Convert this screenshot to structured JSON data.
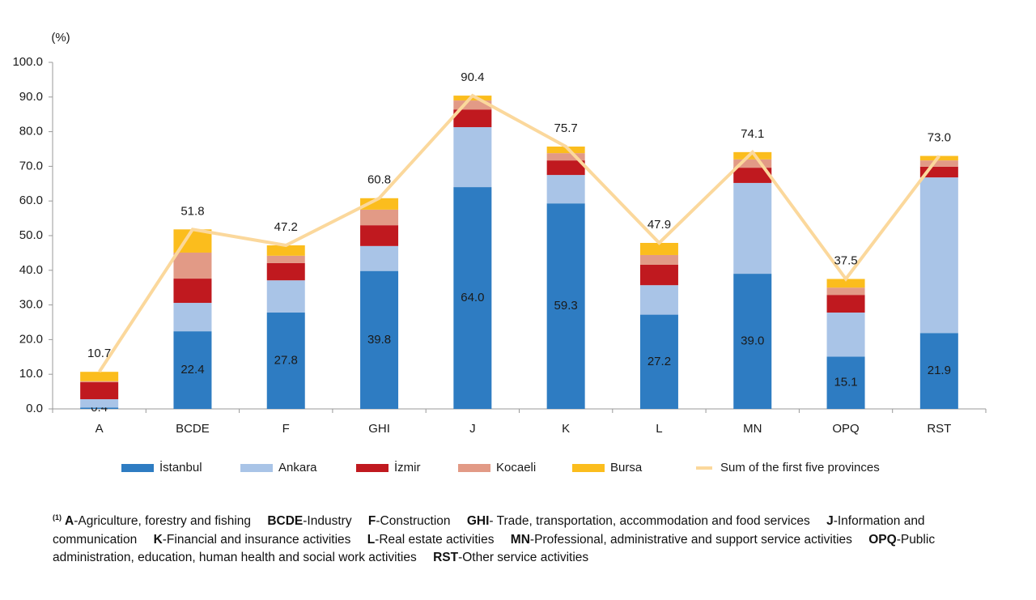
{
  "chart_data": {
    "type": "bar",
    "stacked": true,
    "y_label": "(%)",
    "categories": [
      "A",
      "BCDE",
      "F",
      "GHI",
      "J",
      "K",
      "L",
      "MN",
      "OPQ",
      "RST"
    ],
    "series": [
      {
        "name": "İstanbul",
        "color": "#2e7cc2",
        "values": [
          0.4,
          22.4,
          27.8,
          39.8,
          64.0,
          59.3,
          27.2,
          39.0,
          15.1,
          21.9
        ],
        "value_labels": [
          "0.4",
          "22.4",
          "27.8",
          "39.8",
          "64.0",
          "59.3",
          "27.2",
          "39.0",
          "15.1",
          "21.9"
        ]
      },
      {
        "name": "Ankara",
        "color": "#a9c4e7",
        "values": [
          2.4,
          8.2,
          9.3,
          7.2,
          17.3,
          8.2,
          8.5,
          26.2,
          12.7,
          44.9
        ]
      },
      {
        "name": "İzmir",
        "color": "#c0191f",
        "values": [
          4.9,
          7.0,
          5.0,
          6.0,
          5.1,
          4.2,
          5.9,
          4.4,
          5.1,
          3.1
        ]
      },
      {
        "name": "Kocaeli",
        "color": "#e29a86",
        "values": [
          0.3,
          7.5,
          2.1,
          4.5,
          2.6,
          2.1,
          2.8,
          2.4,
          2.1,
          1.8
        ]
      },
      {
        "name": "Bursa",
        "color": "#fbbd1d",
        "values": [
          2.7,
          6.7,
          3.0,
          3.3,
          1.4,
          1.9,
          3.5,
          2.1,
          2.5,
          1.3
        ]
      },
      {
        "name": "Sum of the first five provinces",
        "type": "line",
        "color": "#fbd89c",
        "values": [
          10.7,
          51.8,
          47.2,
          60.8,
          90.4,
          75.7,
          47.9,
          74.1,
          37.5,
          73.0
        ],
        "value_labels": [
          "10.7",
          "51.8",
          "47.2",
          "60.8",
          "90.4",
          "75.7",
          "47.9",
          "74.1",
          "37.5",
          "73.0"
        ]
      }
    ],
    "ylim": [
      0,
      100
    ],
    "yticks": [
      {
        "value": 0,
        "label": "0.0"
      },
      {
        "value": 10,
        "label": "10.0"
      },
      {
        "value": 20,
        "label": "20.0"
      },
      {
        "value": 30,
        "label": "30.0"
      },
      {
        "value": 40,
        "label": "40.0"
      },
      {
        "value": 50,
        "label": "50.0"
      },
      {
        "value": 60,
        "label": "60.0"
      },
      {
        "value": 70,
        "label": "70.0"
      },
      {
        "value": 80,
        "label": "80.0"
      },
      {
        "value": 90,
        "label": "90.0"
      },
      {
        "value": 100,
        "label": "100.0"
      }
    ],
    "grid": false,
    "legend": "bottom"
  },
  "footnote": {
    "marker": "(1)",
    "items": [
      {
        "code": "A",
        "text": "-Agriculture, forestry and fishing"
      },
      {
        "code": "BCDE",
        "text": "-Industry"
      },
      {
        "code": "F",
        "text": "-Construction"
      },
      {
        "code": "GHI",
        "text": "- Trade, transportation, accommodation and food services"
      },
      {
        "code": "J",
        "text": "-Information and communication"
      },
      {
        "code": "K",
        "text": "-Financial and insurance activities"
      },
      {
        "code": "L",
        "text": "-Real estate activities"
      },
      {
        "code": "MN",
        "text": "-Professional, administrative and support service activities"
      },
      {
        "code": "OPQ",
        "text": "-Public administration,  education, human health and social work activities"
      },
      {
        "code": "RST",
        "text": "-Other service activities"
      }
    ]
  }
}
